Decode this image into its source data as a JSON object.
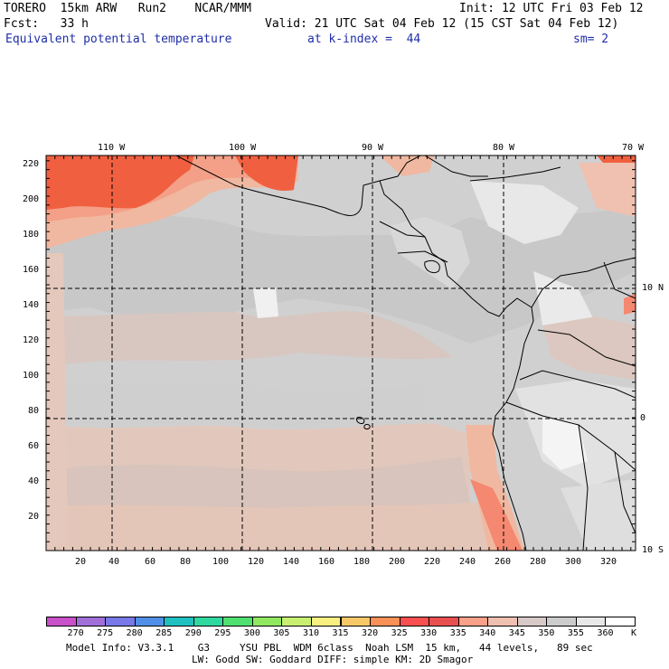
{
  "header": {
    "model": "TORERO  15km ARW   Run2    NCAR/MMM",
    "init": "Init: 12 UTC Fri 03 Feb 12",
    "fcst": "Fcst:   33 h",
    "valid": "Valid: 21 UTC Sat 04 Feb 12 (15 CST Sat 04 Feb 12)",
    "field": "Equivalent potential temperature",
    "level": "at k-index =  44",
    "smooth": "sm= 2"
  },
  "map": {
    "top_lon_labels": [
      "110 W",
      "100 W",
      "90 W",
      "80 W",
      "70 W"
    ],
    "right_lat_labels": [
      "10 N",
      "0",
      "10 S"
    ],
    "left_grid_labels": [
      "220",
      "200",
      "180",
      "160",
      "140",
      "120",
      "100",
      "80",
      "60",
      "40",
      "20"
    ],
    "bottom_grid_labels": [
      "20",
      "40",
      "60",
      "80",
      "100",
      "120",
      "140",
      "160",
      "180",
      "200",
      "220",
      "240",
      "260",
      "280",
      "300",
      "320"
    ]
  },
  "colorbar": {
    "levels": [
      "270",
      "275",
      "280",
      "285",
      "290",
      "295",
      "300",
      "305",
      "310",
      "315",
      "320",
      "325",
      "330",
      "335",
      "340",
      "345",
      "350",
      "355",
      "360"
    ],
    "unit": "K",
    "colors": [
      "#c850c8",
      "#a070d8",
      "#7878e8",
      "#5090e8",
      "#20c0c0",
      "#30d8a0",
      "#50e070",
      "#90e860",
      "#c8f070",
      "#f8f080",
      "#f8c868",
      "#f89058",
      "#f85050",
      "#e85050",
      "#f8a088",
      "#f0c0b0",
      "#d8c8c8",
      "#cccccc",
      "#e8e8e8",
      "#ffffff"
    ]
  },
  "footer": {
    "line1": "Model Info: V3.3.1    G3     YSU PBL  WDM 6class  Noah LSM  15 km,   44 levels,   89 sec",
    "line2": "LW: Godd SW: Goddard DIFF: simple KM: 2D Smagor"
  }
}
